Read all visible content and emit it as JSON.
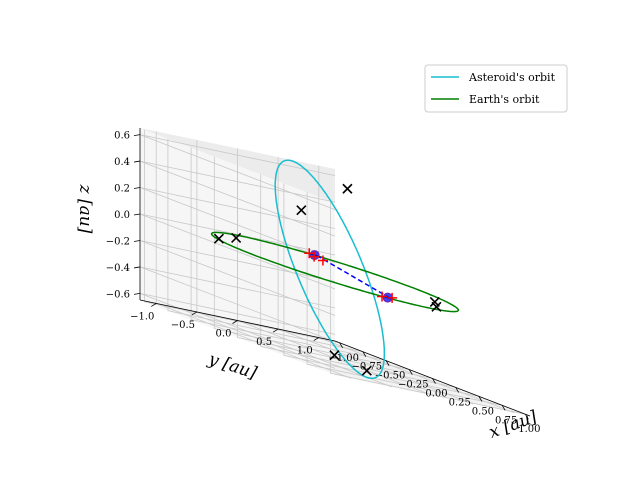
{
  "chart_data": {
    "type": "line",
    "projection": "3d",
    "xlabel": "$x$ [au]",
    "ylabel": "$y$ [au]",
    "zlabel": "$z$ [au]",
    "xlabel_text": "x [au]",
    "ylabel_text": "y [au]",
    "zlabel_text": "z [au]",
    "xlim": [
      -1.05,
      1.05
    ],
    "ylim": [
      -1.2,
      1.2
    ],
    "zlim": [
      -0.65,
      0.65
    ],
    "xticks": [
      -1.0,
      -0.75,
      -0.5,
      -0.25,
      0.0,
      0.25,
      0.5,
      0.75,
      1.0
    ],
    "xtick_labels": [
      "−1.00",
      "−0.75",
      "−0.50",
      "−0.25",
      "0.00",
      "0.25",
      "0.50",
      "0.75",
      "1.00"
    ],
    "yticks": [
      1.0,
      0.5,
      0.0,
      -0.5,
      -1.0
    ],
    "ytick_labels": [
      "1.0",
      "0.5",
      "0.0",
      "−0.5",
      "−1.0"
    ],
    "zticks": [
      0.6,
      0.4,
      0.2,
      0.0,
      -0.2,
      -0.4,
      -0.6
    ],
    "ztick_labels": [
      "0.6",
      "0.4",
      "0.2",
      "0.0",
      "−0.2",
      "−0.4",
      "−0.6"
    ],
    "grid": true,
    "legend_position": "top-right",
    "view": {
      "elev": 20,
      "azim": 40
    },
    "colors": {
      "asteroid": "#17becf",
      "earth": "#008000",
      "line_of_nodes": "#0000ff",
      "cross": "#000000",
      "plus": "#ff0000",
      "node": "#0000ff",
      "pane": "#f2f2f2",
      "grid": "#c8c8c8"
    },
    "series": [
      {
        "name": "Asteroid's orbit",
        "kind": "ellipse",
        "center": [
          -0.1,
          0.05,
          0.0
        ],
        "u": [
          0.55,
          -1.05,
          0.0
        ],
        "v": [
          -0.3,
          -0.18,
          0.72
        ]
      },
      {
        "name": "Earth's orbit",
        "kind": "circle",
        "center": [
          0.0,
          0.0,
          0.0
        ],
        "radius": 1.0
      }
    ],
    "line_of_nodes": [
      [
        0.9,
        -0.35,
        0.0
      ],
      [
        -0.75,
        0.65,
        0.0
      ]
    ],
    "cross_markers": [
      [
        -0.4,
        0.61,
        0.6
      ],
      [
        -0.52,
        0.18,
        0.35
      ],
      [
        0.55,
        0.6,
        0.0
      ],
      [
        0.83,
        0.3,
        0.0
      ],
      [
        -0.82,
        -0.28,
        0.0
      ],
      [
        -0.55,
        -0.8,
        0.0
      ],
      [
        0.78,
        -0.5,
        -0.6
      ],
      [
        0.65,
        -0.75,
        -0.55
      ]
    ],
    "plus_markers": [
      [
        -0.82,
        0.62,
        0.0
      ],
      [
        -0.55,
        0.48,
        0.0
      ],
      [
        -0.68,
        0.52,
        0.0
      ],
      [
        0.86,
        -0.28,
        0.0
      ],
      [
        0.9,
        -0.45,
        0.0
      ]
    ],
    "node_points": [
      [
        -0.78,
        0.64,
        0.0
      ],
      [
        0.9,
        -0.38,
        0.0
      ]
    ]
  }
}
